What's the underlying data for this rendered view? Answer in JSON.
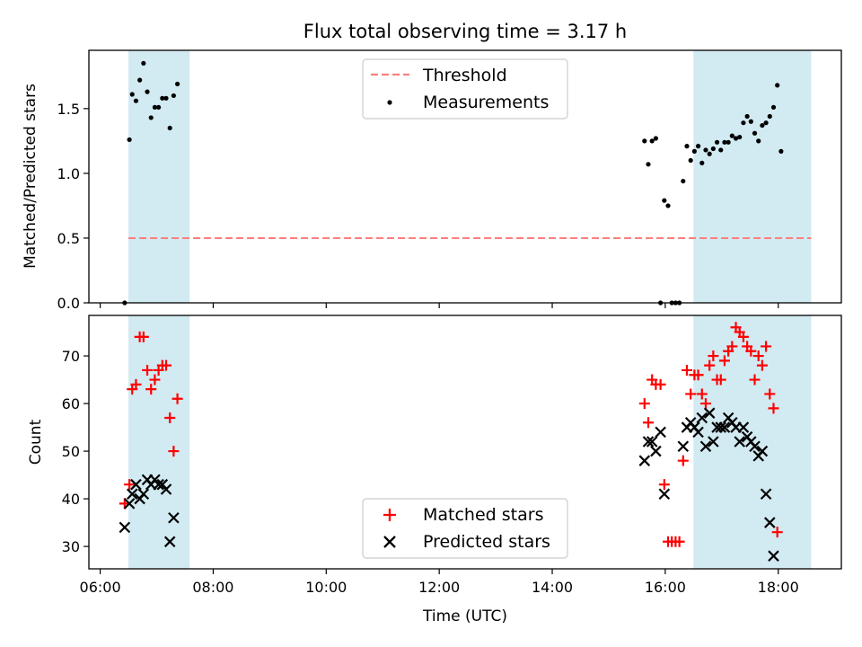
{
  "title": "Flux total observing time = 3.17 h",
  "colors": {
    "band": "#add8e6",
    "threshold": "#ff7f7f",
    "measurement": "#000000",
    "matched": "#ff0000",
    "predicted": "#000000"
  },
  "chart_data": [
    {
      "type": "scatter",
      "ylabel": "Matched/Predicted stars",
      "ylim": [
        0,
        1.95
      ],
      "xlim": [
        "05:48",
        "19:07"
      ],
      "yticks": [
        "0.0",
        "0.5",
        "1.0",
        "1.5"
      ],
      "shaded_intervals": [
        [
          "06:30",
          "07:35"
        ],
        [
          "16:30",
          "18:35"
        ]
      ],
      "threshold": {
        "value": 0.5,
        "x_range": [
          "06:30",
          "18:35"
        ]
      },
      "legend": {
        "position": "top-center",
        "entries": [
          "Threshold",
          "Measurements"
        ]
      },
      "series": [
        {
          "name": "Measurements",
          "points": [
            [
              "06:26",
              0.0
            ],
            [
              "06:31",
              1.26
            ],
            [
              "06:34",
              1.61
            ],
            [
              "06:38",
              1.56
            ],
            [
              "06:42",
              1.72
            ],
            [
              "06:46",
              1.85
            ],
            [
              "06:50",
              1.63
            ],
            [
              "06:54",
              1.43
            ],
            [
              "06:58",
              1.51
            ],
            [
              "07:02",
              1.51
            ],
            [
              "07:06",
              1.58
            ],
            [
              "07:10",
              1.58
            ],
            [
              "07:14",
              1.35
            ],
            [
              "07:18",
              1.6
            ],
            [
              "07:22",
              1.69
            ],
            [
              "15:38",
              1.25
            ],
            [
              "15:42",
              1.07
            ],
            [
              "15:46",
              1.25
            ],
            [
              "15:50",
              1.27
            ],
            [
              "15:55",
              0.0
            ],
            [
              "15:59",
              0.79
            ],
            [
              "16:03",
              0.75
            ],
            [
              "16:07",
              0.0
            ],
            [
              "16:11",
              0.0
            ],
            [
              "16:15",
              0.0
            ],
            [
              "16:19",
              0.94
            ],
            [
              "16:23",
              1.21
            ],
            [
              "16:27",
              1.1
            ],
            [
              "16:31",
              1.17
            ],
            [
              "16:35",
              1.21
            ],
            [
              "16:39",
              1.08
            ],
            [
              "16:43",
              1.18
            ],
            [
              "16:47",
              1.15
            ],
            [
              "16:51",
              1.19
            ],
            [
              "16:55",
              1.24
            ],
            [
              "16:59",
              1.18
            ],
            [
              "17:03",
              1.24
            ],
            [
              "17:07",
              1.24
            ],
            [
              "17:11",
              1.29
            ],
            [
              "17:15",
              1.27
            ],
            [
              "17:19",
              1.28
            ],
            [
              "17:23",
              1.39
            ],
            [
              "17:27",
              1.44
            ],
            [
              "17:31",
              1.4
            ],
            [
              "17:35",
              1.31
            ],
            [
              "17:39",
              1.25
            ],
            [
              "17:43",
              1.37
            ],
            [
              "17:47",
              1.39
            ],
            [
              "17:51",
              1.44
            ],
            [
              "17:55",
              1.51
            ],
            [
              "17:59",
              1.68
            ],
            [
              "18:03",
              1.17
            ]
          ]
        }
      ]
    },
    {
      "type": "scatter",
      "xlabel": "Time (UTC)",
      "ylabel": "Count",
      "ylim": [
        25.3,
        78.5
      ],
      "xlim": [
        "05:48",
        "19:07"
      ],
      "yticks": [
        "30",
        "40",
        "50",
        "60",
        "70"
      ],
      "xticks": [
        "06:00",
        "08:00",
        "10:00",
        "12:00",
        "14:00",
        "16:00",
        "18:00"
      ],
      "shaded_intervals": [
        [
          "06:30",
          "07:35"
        ],
        [
          "16:30",
          "18:35"
        ]
      ],
      "legend": {
        "position": "bottom-center",
        "entries": [
          "Matched stars",
          "Predicted stars"
        ]
      },
      "series": [
        {
          "name": "Matched stars",
          "points": [
            [
              "06:26",
              39
            ],
            [
              "06:31",
              43
            ],
            [
              "06:34",
              63
            ],
            [
              "06:38",
              64
            ],
            [
              "06:42",
              74
            ],
            [
              "06:46",
              74
            ],
            [
              "06:50",
              67
            ],
            [
              "06:54",
              63
            ],
            [
              "06:58",
              65
            ],
            [
              "07:02",
              67
            ],
            [
              "07:06",
              68
            ],
            [
              "07:10",
              68
            ],
            [
              "07:14",
              57
            ],
            [
              "07:18",
              50
            ],
            [
              "07:22",
              61
            ],
            [
              "15:38",
              60
            ],
            [
              "15:42",
              56
            ],
            [
              "15:46",
              65
            ],
            [
              "15:50",
              64
            ],
            [
              "15:55",
              64
            ],
            [
              "15:59",
              43
            ],
            [
              "16:03",
              31
            ],
            [
              "16:07",
              31
            ],
            [
              "16:11",
              31
            ],
            [
              "16:15",
              31
            ],
            [
              "16:19",
              48
            ],
            [
              "16:23",
              67
            ],
            [
              "16:27",
              62
            ],
            [
              "16:31",
              66
            ],
            [
              "16:35",
              66
            ],
            [
              "16:39",
              62
            ],
            [
              "16:43",
              60
            ],
            [
              "16:47",
              68
            ],
            [
              "16:51",
              70
            ],
            [
              "16:55",
              65
            ],
            [
              "16:59",
              65
            ],
            [
              "17:03",
              69
            ],
            [
              "17:07",
              71
            ],
            [
              "17:11",
              72
            ],
            [
              "17:15",
              76
            ],
            [
              "17:19",
              75
            ],
            [
              "17:23",
              74
            ],
            [
              "17:27",
              72
            ],
            [
              "17:31",
              71
            ],
            [
              "17:35",
              65
            ],
            [
              "17:39",
              70
            ],
            [
              "17:43",
              68
            ],
            [
              "17:47",
              72
            ],
            [
              "17:51",
              62
            ],
            [
              "17:55",
              59
            ],
            [
              "17:59",
              33
            ]
          ]
        },
        {
          "name": "Predicted stars",
          "points": [
            [
              "06:26",
              34
            ],
            [
              "06:31",
              39
            ],
            [
              "06:34",
              41
            ],
            [
              "06:38",
              43
            ],
            [
              "06:42",
              40
            ],
            [
              "06:46",
              41
            ],
            [
              "06:50",
              44
            ],
            [
              "06:54",
              43
            ],
            [
              "06:58",
              44
            ],
            [
              "07:02",
              43
            ],
            [
              "07:06",
              43
            ],
            [
              "07:10",
              42
            ],
            [
              "07:14",
              31
            ],
            [
              "07:18",
              36
            ],
            [
              "15:38",
              48
            ],
            [
              "15:42",
              52
            ],
            [
              "15:46",
              52
            ],
            [
              "15:50",
              50
            ],
            [
              "15:55",
              54
            ],
            [
              "15:59",
              41
            ],
            [
              "16:19",
              51
            ],
            [
              "16:23",
              55
            ],
            [
              "16:27",
              56
            ],
            [
              "16:31",
              55
            ],
            [
              "16:35",
              54
            ],
            [
              "16:39",
              57
            ],
            [
              "16:43",
              51
            ],
            [
              "16:47",
              58
            ],
            [
              "16:51",
              52
            ],
            [
              "16:55",
              55
            ],
            [
              "16:59",
              55
            ],
            [
              "17:03",
              55
            ],
            [
              "17:07",
              57
            ],
            [
              "17:11",
              56
            ],
            [
              "17:15",
              55
            ],
            [
              "17:19",
              52
            ],
            [
              "17:23",
              55
            ],
            [
              "17:27",
              53
            ],
            [
              "17:31",
              52
            ],
            [
              "17:35",
              51
            ],
            [
              "17:39",
              49
            ],
            [
              "17:43",
              50
            ],
            [
              "17:47",
              41
            ],
            [
              "17:51",
              35
            ],
            [
              "17:55",
              28
            ]
          ]
        }
      ]
    }
  ]
}
